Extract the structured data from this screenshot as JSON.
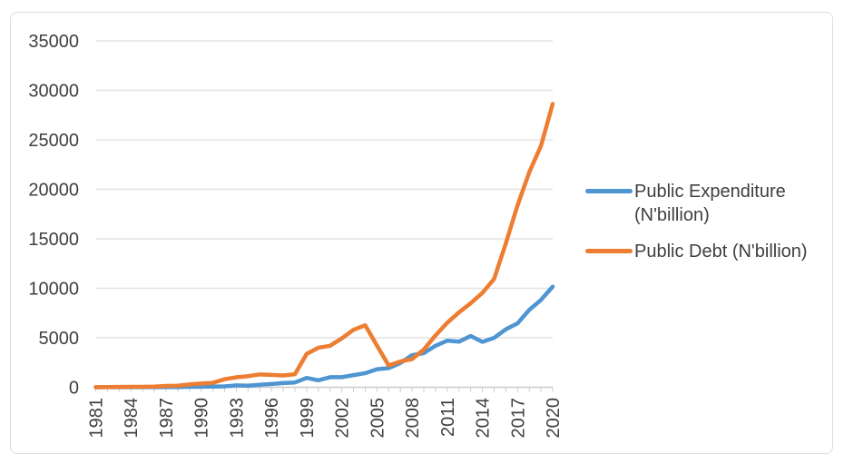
{
  "colors": {
    "expenditure_line": "#4e95d2",
    "debt_line": "#ed7d31",
    "gridline": "#e3e3e3",
    "axis": "#c9c9c9",
    "text": "#3f3f3f",
    "frame_border": "#dcdcdc",
    "background": "#ffffff"
  },
  "chart_data": {
    "type": "line",
    "title": "",
    "xlabel": "",
    "ylabel": "",
    "grid": true,
    "legend_position": "right-middle",
    "ylim": [
      0,
      35000
    ],
    "ytick_step": 5000,
    "ytick_labels": [
      "0",
      "5000",
      "10000",
      "15000",
      "20000",
      "25000",
      "30000",
      "35000"
    ],
    "xtick_every": 3,
    "xtick_labels": [
      "1981",
      "1984",
      "1987",
      "1990",
      "1993",
      "1996",
      "1999",
      "2002",
      "2005",
      "2008",
      "2011",
      "2014",
      "2017",
      "2020"
    ],
    "x": [
      1981,
      1982,
      1983,
      1984,
      1985,
      1986,
      1987,
      1988,
      1989,
      1990,
      1991,
      1992,
      1993,
      1994,
      1995,
      1996,
      1997,
      1998,
      1999,
      2000,
      2001,
      2002,
      2003,
      2004,
      2005,
      2006,
      2007,
      2008,
      2009,
      2010,
      2011,
      2012,
      2013,
      2014,
      2015,
      2016,
      2017,
      2018,
      2019,
      2020
    ],
    "series": [
      {
        "name": "Public Expenditure (N'billion)",
        "color": "#4e95d2",
        "values": [
          11.4,
          11.9,
          9.6,
          9.9,
          13.0,
          16.2,
          22.0,
          27.7,
          41.0,
          60.3,
          66.6,
          92.8,
          191.2,
          160.9,
          248.8,
          337.2,
          428.2,
          487.1,
          947.7,
          701.1,
          1018.0,
          1018.2,
          1226.0,
          1426.2,
          1822.1,
          1938.0,
          2450.9,
          3240.8,
          3453.0,
          4194.6,
          4712.1,
          4605.3,
          5185.3,
          4587.4,
          4988.9,
          5858.6,
          6456.7,
          7813.7,
          8827.0,
          10164.6
        ]
      },
      {
        "name": "Public Debt (N'billion)",
        "color": "#ed7d31",
        "values": [
          13.5,
          23.2,
          32.9,
          42.2,
          45.3,
          69.9,
          137.6,
          162.3,
          287.4,
          382.8,
          453.1,
          812.7,
          1009.8,
          1126.5,
          1300.2,
          1247.7,
          1194.5,
          1316.3,
          3372.2,
          3995.6,
          4193.3,
          4936.2,
          5808.2,
          6260.6,
          4220.9,
          2204.7,
          2608.5,
          2843.6,
          3818.5,
          5241.7,
          6519.7,
          7564.4,
          8493.0,
          9535.5,
          10948.5,
          14537.1,
          18377.0,
          21725.8,
          24387.1,
          28628.6
        ]
      }
    ]
  }
}
